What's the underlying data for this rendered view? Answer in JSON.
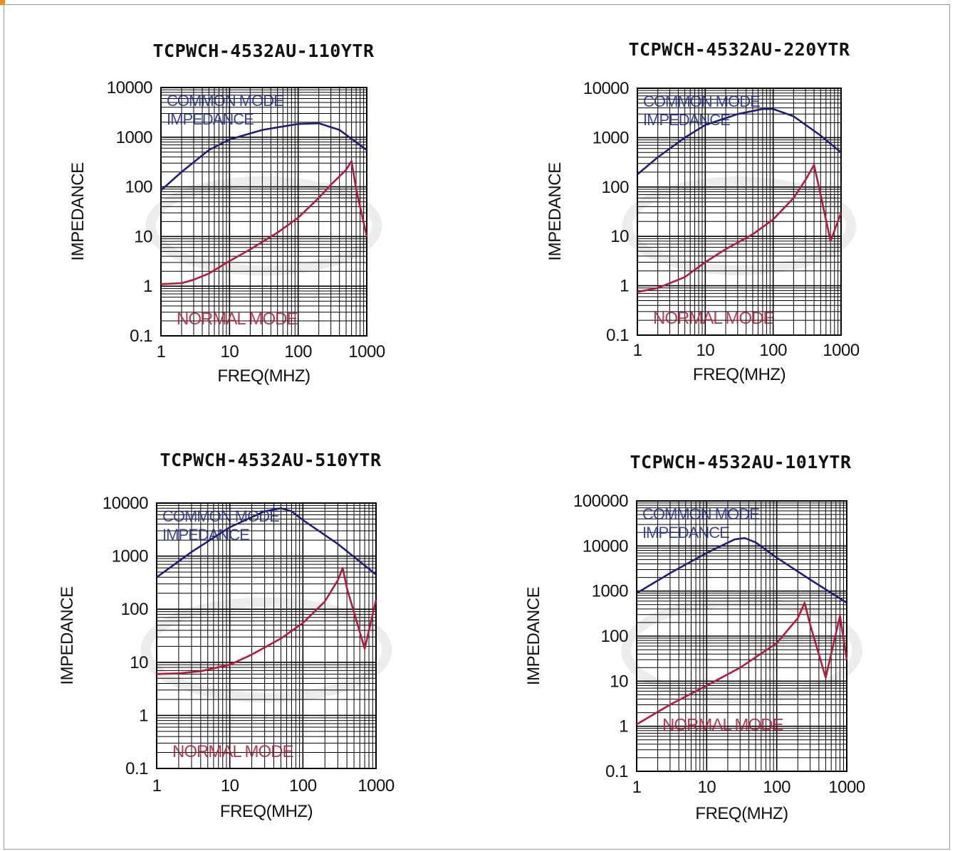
{
  "colors": {
    "common_mode": "#1f1f7a",
    "normal_mode": "#b31b3c",
    "grid": "#000000"
  },
  "chart_data": [
    {
      "type": "line",
      "title": "TCPWCH-4532AU-110YTR",
      "xlabel": "FREQ(MHZ)",
      "ylabel": "IMPEDANCE",
      "xscale": "log",
      "yscale": "log",
      "xlim": [
        1,
        1000
      ],
      "ylim": [
        0.1,
        10000
      ],
      "xticks": [
        "1",
        "10",
        "100",
        "1000"
      ],
      "yticks": [
        "0.1",
        "1",
        "10",
        "100",
        "1000",
        "10000"
      ],
      "annotations": {
        "common": "COMMON MODE",
        "common2": "IMPEDANCE",
        "normal": "NORMAL MODE"
      },
      "grid": true,
      "series": [
        {
          "key": "common",
          "x": [
            1,
            2,
            5,
            10,
            30,
            100,
            200,
            400,
            1000
          ],
          "y": [
            85,
            200,
            550,
            900,
            1400,
            1850,
            1900,
            1400,
            550
          ]
        },
        {
          "key": "normal",
          "x": [
            1,
            2,
            3,
            5,
            10,
            20,
            50,
            100,
            200,
            300,
            500,
            600,
            700,
            1000
          ],
          "y": [
            1.1,
            1.15,
            1.35,
            1.8,
            3.2,
            5.5,
            12,
            24,
            60,
            110,
            220,
            330,
            90,
            10
          ]
        }
      ]
    },
    {
      "type": "line",
      "title": "TCPWCH-4532AU-220YTR",
      "xlabel": "FREQ(MHZ)",
      "ylabel": "IMPEDANCE",
      "xscale": "log",
      "yscale": "log",
      "xlim": [
        1,
        1000
      ],
      "ylim": [
        0.1,
        10000
      ],
      "xticks": [
        "1",
        "10",
        "100",
        "1000"
      ],
      "yticks": [
        "0.1",
        "1",
        "10",
        "100",
        "1000",
        "10000"
      ],
      "annotations": {
        "common": "COMMON MODE",
        "common2": "IMPEDANCE",
        "normal": "NORMAL MODE"
      },
      "grid": true,
      "series": [
        {
          "key": "common",
          "x": [
            1,
            2,
            5,
            10,
            30,
            70,
            100,
            200,
            500,
            1000
          ],
          "y": [
            180,
            400,
            1000,
            1800,
            3000,
            3800,
            3800,
            2700,
            1100,
            500
          ]
        },
        {
          "key": "normal",
          "x": [
            1,
            2,
            5,
            10,
            20,
            50,
            100,
            200,
            300,
            400,
            500,
            700,
            1000
          ],
          "y": [
            0.75,
            0.9,
            1.5,
            3,
            5.5,
            11,
            22,
            60,
            140,
            280,
            70,
            8,
            30
          ]
        }
      ]
    },
    {
      "type": "line",
      "title": "TCPWCH-4532AU-510YTR",
      "xlabel": "FREQ(MHZ)",
      "ylabel": "IMPEDANCE",
      "xscale": "log",
      "yscale": "log",
      "xlim": [
        1,
        1000
      ],
      "ylim": [
        0.1,
        10000
      ],
      "xticks": [
        "1",
        "10",
        "100",
        "1000"
      ],
      "yticks": [
        "0.1",
        "1",
        "10",
        "100",
        "1000",
        "10000"
      ],
      "annotations": {
        "common": "COMMON MODE",
        "common2": "IMPEDANCE",
        "normal": "NORMAL MODE"
      },
      "grid": true,
      "series": [
        {
          "key": "common",
          "x": [
            1,
            3,
            10,
            30,
            50,
            70,
            100,
            300,
            1000
          ],
          "y": [
            400,
            1200,
            3500,
            7000,
            8000,
            7000,
            4800,
            1700,
            450
          ]
        },
        {
          "key": "normal",
          "x": [
            1,
            2,
            4,
            10,
            20,
            50,
            100,
            200,
            300,
            350,
            400,
            700,
            1000
          ],
          "y": [
            6,
            6.2,
            6.8,
            9,
            14,
            28,
            55,
            140,
            350,
            600,
            250,
            18,
            150
          ]
        }
      ]
    },
    {
      "type": "line",
      "title": "TCPWCH-4532AU-101YTR",
      "xlabel": "FREQ(MHZ)",
      "ylabel": "IMPEDANCE",
      "xscale": "log",
      "yscale": "log",
      "xlim": [
        1,
        1000
      ],
      "ylim": [
        0.1,
        100000
      ],
      "xticks": [
        "1",
        "10",
        "100",
        "1000"
      ],
      "yticks": [
        "0.1",
        "1",
        "10",
        "100",
        "1000",
        "10000",
        "100000"
      ],
      "annotations": {
        "common": "COMMON MODE",
        "common2": "IMPEDANCE",
        "normal": "NORMAL MODE"
      },
      "grid": true,
      "series": [
        {
          "key": "common",
          "x": [
            1,
            3,
            10,
            25,
            35,
            50,
            100,
            300,
            1000
          ],
          "y": [
            900,
            2500,
            7000,
            14000,
            15000,
            12000,
            5500,
            1800,
            550
          ]
        },
        {
          "key": "normal",
          "x": [
            1,
            3,
            10,
            30,
            100,
            200,
            250,
            300,
            500,
            800,
            1000
          ],
          "y": [
            1.1,
            3,
            8,
            20,
            70,
            250,
            550,
            180,
            12,
            280,
            30
          ]
        }
      ]
    }
  ]
}
